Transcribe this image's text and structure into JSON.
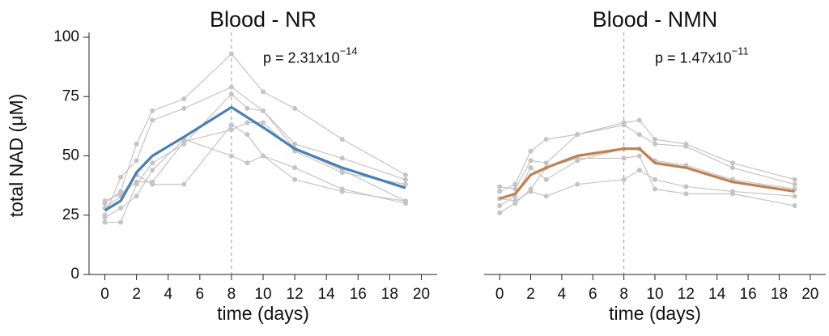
{
  "chart_data": [
    {
      "type": "line",
      "title": "Blood - NR",
      "ylabel": "total NAD (μM)",
      "xlabel": "time (days)",
      "xlim": [
        -1,
        21
      ],
      "xticks": [
        0,
        2,
        4,
        6,
        8,
        10,
        12,
        14,
        16,
        18,
        20
      ],
      "ylim": [
        0,
        100
      ],
      "yticks": [
        0,
        25,
        50,
        75,
        100
      ],
      "vline": 8,
      "annotation": {
        "text": "p = 2.31x10",
        "superscript": "−14"
      },
      "series": [
        {
          "color": "#c4c4c4",
          "markers": true,
          "x": [
            0,
            1,
            2,
            3,
            5,
            8,
            10,
            12,
            15,
            19
          ],
          "values": [
            30,
            35,
            55,
            69,
            74,
            93,
            77,
            70,
            57,
            42
          ]
        },
        {
          "color": "#c4c4c4",
          "markers": true,
          "x": [
            0,
            1,
            2,
            3,
            5,
            8,
            10,
            12,
            15,
            19
          ],
          "values": [
            25,
            41,
            48,
            65,
            70,
            79,
            69,
            55,
            49,
            40
          ]
        },
        {
          "color": "#c4c4c4",
          "markers": true,
          "x": [
            0,
            1,
            2,
            3,
            5,
            8,
            9,
            10,
            12,
            15,
            19
          ],
          "values": [
            22,
            22,
            38,
            47,
            55,
            76,
            70,
            69,
            53,
            44,
            31
          ]
        },
        {
          "color": "#c4c4c4",
          "markers": true,
          "x": [
            0,
            1,
            2,
            3,
            5,
            8,
            9,
            10,
            12,
            15,
            19
          ],
          "values": [
            28,
            33,
            42,
            38,
            38,
            63,
            59,
            50,
            45,
            36,
            30
          ]
        },
        {
          "color": "#c4c4c4",
          "markers": true,
          "x": [
            0,
            1,
            2,
            3,
            5,
            8,
            9,
            10,
            12,
            15,
            19
          ],
          "values": [
            31,
            34,
            39,
            39,
            56,
            61,
            64,
            64,
            52,
            43,
            38
          ]
        },
        {
          "color": "#c4c4c4",
          "markers": true,
          "x": [
            0,
            1,
            2,
            3,
            5,
            8,
            9,
            10,
            12,
            15,
            19
          ],
          "values": [
            24,
            28,
            33,
            44,
            57,
            50,
            47,
            50,
            40,
            35,
            31
          ]
        },
        {
          "color": "#4a7fb5",
          "markers": false,
          "x": [
            0,
            1,
            2,
            3,
            5,
            8,
            10,
            12,
            15,
            19
          ],
          "values": [
            27,
            31,
            43,
            50,
            58,
            70.5,
            62,
            53,
            45,
            36.5
          ]
        }
      ]
    },
    {
      "type": "line",
      "title": "Blood - NMN",
      "xlabel": "time (days)",
      "xlim": [
        -1,
        21
      ],
      "xticks": [
        0,
        2,
        4,
        6,
        8,
        10,
        12,
        14,
        16,
        18,
        20
      ],
      "ylim": [
        0,
        100
      ],
      "vline": 8,
      "annotation": {
        "text": "p = 1.47x10",
        "superscript": "−11"
      },
      "series": [
        {
          "color": "#c4c4c4",
          "markers": true,
          "x": [
            0,
            1,
            2,
            3,
            5,
            8,
            9,
            10,
            12,
            15,
            19
          ],
          "values": [
            35,
            38,
            52,
            57,
            59,
            64,
            65,
            57,
            55,
            47,
            40
          ]
        },
        {
          "color": "#c4c4c4",
          "markers": true,
          "x": [
            0,
            1,
            2,
            3,
            5,
            8,
            9,
            10,
            12,
            15,
            19
          ],
          "values": [
            37,
            36,
            48,
            47,
            59,
            63,
            59,
            55,
            54,
            45,
            38
          ]
        },
        {
          "color": "#c4c4c4",
          "markers": true,
          "x": [
            0,
            1,
            2,
            3,
            5,
            8,
            9,
            10,
            12,
            15,
            19
          ],
          "values": [
            29,
            33,
            45,
            40,
            48,
            53,
            53,
            48,
            46,
            40,
            36
          ]
        },
        {
          "color": "#c4c4c4",
          "markers": true,
          "x": [
            0,
            1,
            2,
            3,
            5,
            8,
            9,
            10,
            12,
            15,
            19
          ],
          "values": [
            32,
            31,
            35,
            33,
            38,
            40,
            44,
            40,
            37,
            35,
            33
          ]
        },
        {
          "color": "#c4c4c4",
          "markers": true,
          "x": [
            0,
            1,
            2,
            3,
            5,
            8,
            9,
            10,
            12,
            15,
            19
          ],
          "values": [
            26,
            30,
            36,
            45,
            49,
            49,
            50,
            36,
            34,
            34,
            29
          ]
        },
        {
          "color": "#c0804f",
          "markers": false,
          "x": [
            0,
            1,
            2,
            3,
            5,
            8,
            9,
            10,
            12,
            15,
            19
          ],
          "values": [
            32,
            34,
            42,
            45,
            50,
            53,
            53,
            47,
            45,
            39,
            35
          ]
        }
      ]
    }
  ]
}
